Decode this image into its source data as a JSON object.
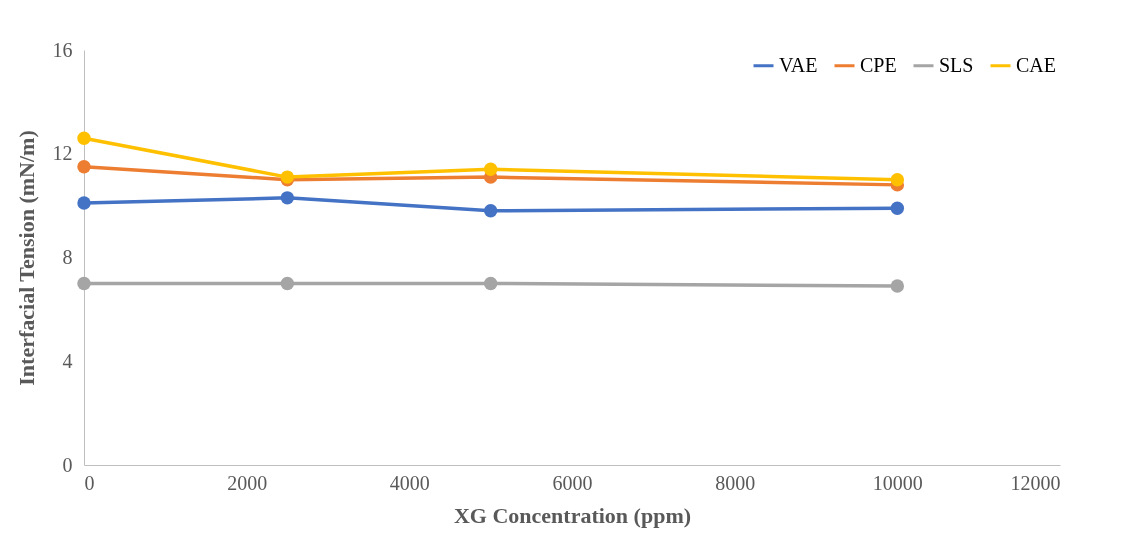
{
  "chart_data": {
    "type": "line",
    "xlabel": "XG Concentration (ppm)",
    "ylabel": "Interfacial Tension (mN/m)",
    "x": [
      0,
      2500,
      5000,
      10000
    ],
    "series": [
      {
        "name": "VAE",
        "color": "#4472c4",
        "values": [
          10.1,
          10.3,
          9.8,
          9.9
        ]
      },
      {
        "name": "CPE",
        "color": "#ed7d31",
        "values": [
          11.5,
          11.0,
          11.1,
          10.8
        ]
      },
      {
        "name": "SLS",
        "color": "#a5a5a5",
        "values": [
          7.0,
          7.0,
          7.0,
          6.9
        ]
      },
      {
        "name": "CAE",
        "color": "#ffc000",
        "values": [
          12.6,
          11.1,
          11.4,
          11.0
        ]
      }
    ],
    "xlim": [
      0,
      12000
    ],
    "xticks": [
      0,
      2000,
      4000,
      6000,
      8000,
      10000,
      12000
    ],
    "ylim": [
      0,
      16
    ],
    "yticks": [
      0,
      4,
      8,
      12,
      16
    ],
    "grid": false,
    "legend": "top right",
    "marker": "circle",
    "line_style": "solid"
  }
}
